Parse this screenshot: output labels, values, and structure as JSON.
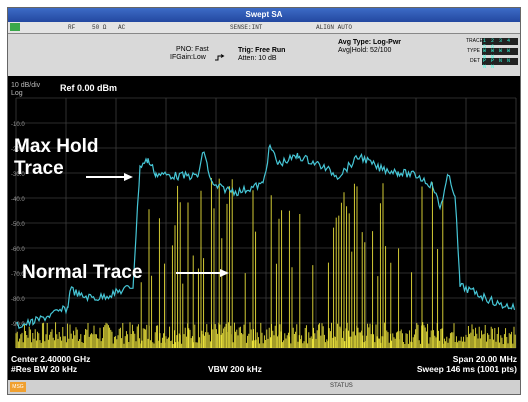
{
  "window": {
    "title": "Swept SA"
  },
  "status_bar": {
    "rf": "RF",
    "impedance": "50 Ω",
    "coupling": "AC",
    "sense": "SENSE:INT",
    "align": "ALIGN AUTO"
  },
  "settings": {
    "pno": "PNO: Fast",
    "ifgain": "IFGain:Low",
    "trig": "Trig: Free Run",
    "atten": "Atten: 10 dB",
    "avg_type": "Avg Type: Log-Pwr",
    "avg_hold": "Avg|Hold: 52/100"
  },
  "trace_panel": {
    "trace_label": "TRACE",
    "type_label": "TYPE",
    "det_label": "DET",
    "trace_value": "1 2 3 4 5 6",
    "type_value": "W W W W W W",
    "det_value": "P P N N N N"
  },
  "scale": {
    "per_div": "10 dB/div",
    "mode": "Log",
    "ref": "Ref 0.00 dBm",
    "ticks": [
      "-10.0",
      "-20.0",
      "-30.0",
      "-40.0",
      "-50.0",
      "-60.0",
      "-70.0",
      "-80.0",
      "-90.0"
    ]
  },
  "bottom": {
    "center": "Center 2.40000 GHz",
    "res_bw": "#Res BW 20 kHz",
    "vbw": "VBW 200 kHz",
    "span": "Span 20.00 MHz",
    "sweep": "Sweep  146 ms (1001 pts)"
  },
  "footer": {
    "msg": "MSG",
    "status": "STATUS"
  },
  "annotations": {
    "max_hold": "Max Hold\nTrace",
    "normal": "Normal Trace"
  },
  "colors": {
    "max_hold_trace": "#46c6d6",
    "normal_trace": "#e8df3a",
    "graticule": "#3c3c3c"
  }
}
